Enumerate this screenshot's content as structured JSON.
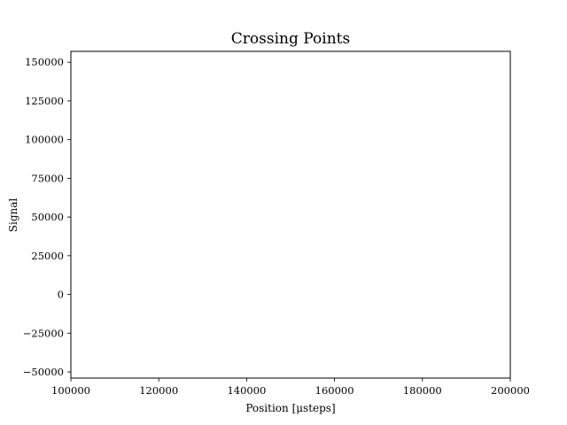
{
  "chart_data": {
    "type": "line",
    "title": "Crossing Points",
    "xlabel": "Position [μsteps]",
    "ylabel": "Signal",
    "xlim": [
      100000,
      200000
    ],
    "ylim": [
      -54000,
      157000
    ],
    "xticks": [
      100000,
      120000,
      140000,
      160000,
      180000,
      200000
    ],
    "yticks": [
      -50000,
      -25000,
      0,
      25000,
      50000,
      75000,
      100000,
      125000,
      150000
    ],
    "grid": false,
    "series": []
  }
}
